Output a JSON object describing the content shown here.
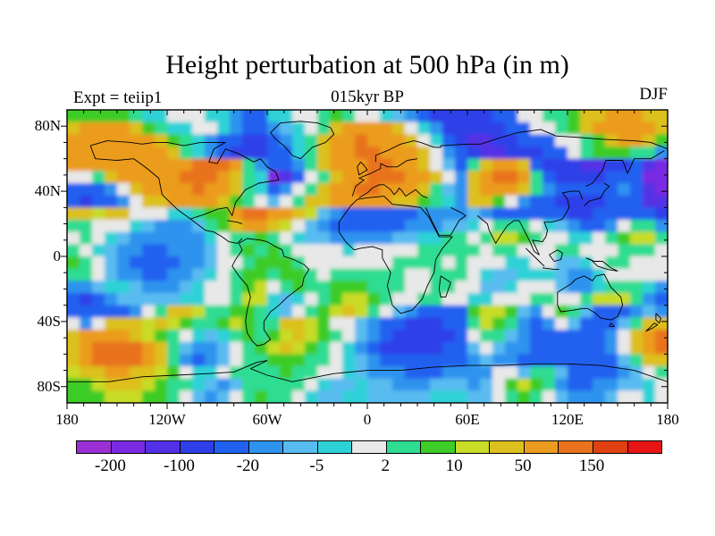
{
  "header": {
    "title": "Height perturbation at 500 hPa (in m)",
    "subtitle": "015kyr BP",
    "experiment": "Expt = teiip1",
    "season": "DJF"
  },
  "axes": {
    "lat_labels": [
      {
        "text": "80N",
        "lat": 80
      },
      {
        "text": "40N",
        "lat": 40
      },
      {
        "text": "0",
        "lat": 0
      },
      {
        "text": "40S",
        "lat": -40
      },
      {
        "text": "80S",
        "lat": -80
      }
    ],
    "lon_labels": [
      {
        "text": "180",
        "lon": -180
      },
      {
        "text": "120W",
        "lon": -120
      },
      {
        "text": "60W",
        "lon": -60
      },
      {
        "text": "0",
        "lon": 0
      },
      {
        "text": "60E",
        "lon": 60
      },
      {
        "text": "120E",
        "lon": 120
      },
      {
        "text": "180",
        "lon": 180
      }
    ]
  },
  "colorbar": {
    "labels": [
      {
        "text": "-200",
        "boundary": 1
      },
      {
        "text": "-100",
        "boundary": 3
      },
      {
        "text": "-20",
        "boundary": 5
      },
      {
        "text": "-5",
        "boundary": 7
      },
      {
        "text": "2",
        "boundary": 9
      },
      {
        "text": "10",
        "boundary": 11
      },
      {
        "text": "50",
        "boundary": 13
      },
      {
        "text": "150",
        "boundary": 15
      }
    ]
  },
  "chart_data": {
    "type": "filled_contour_map",
    "title": "Height perturbation at 500 hPa (in m)",
    "subtitle": "015kyr BP",
    "experiment": "Expt = teiip1",
    "season": "DJF",
    "units": "m",
    "projection": "equirectangular",
    "lon_range": [
      -180,
      180
    ],
    "lat_range": [
      -90,
      90
    ],
    "contour_levels": [
      -200,
      -150,
      -100,
      -50,
      -20,
      -10,
      -5,
      -2,
      2,
      5,
      10,
      20,
      50,
      100,
      150,
      200
    ],
    "labeled_levels": [
      -200,
      -100,
      -20,
      -5,
      2,
      10,
      50,
      150
    ],
    "palette": [
      "#9b2fd6",
      "#7a2be2",
      "#5230e6",
      "#2f3fe8",
      "#2061f0",
      "#2e93ee",
      "#58bcf0",
      "#2ed2d6",
      "#e8e8e8",
      "#2edc92",
      "#3ecc28",
      "#c8dc28",
      "#dcc01e",
      "#eb9c1e",
      "#e8731c",
      "#e04112",
      "#e61414"
    ],
    "grid": {
      "cols": 48,
      "rows": 24,
      "encoding": "each char is a palette index in base-17 (0-9,a-g); rows run 90N to 90S, cols 180W to 180E",
      "rows_data": [
        "aaaaa9778887754477889a988765433333448899accdddcc",
        "cddddca97788754456789cddddc8753333344889acdddddc",
        "dddddddca97544334579cddedddc87432233444889acddca",
        "ddddddddc97543334479cddeedddc8543223334489aaa995",
        "ddddddddddeeed954459cdddeeddc8649cddc43332233421",
        "889cdddddeeedc9712489cddeeeddc85cdeed94333344411",
        "44458cddddeddc974589cddeedddc965cdddc95444445421",
        "434458ccddddca98689ccdddddcca975cca8544333344422",
        "ccbcc888779aadeeddcb6544444455556544444433444443",
        "998887655569acddcb865444444555667899987654458995",
        "898765555557899a987665555566779989bba9887789abb9",
        "98765544555689a9a9888878888899999899888998889998",
        "a98654444556889aaa988888889999898887788667899888",
        "99865544556789aa9aa98999999889998766777655788888",
        "55677655567889ab89a99aaa999889988667888655799975",
        "43456666677889bb76789abba98899887788899889bbb954",
        "44444589ccb99aa97689abcb98654444abba658a96444565",
        "858cccbcba99aba99ccba886544333449ba95458644469cc",
        "cddddcba987679a9abcba986543333348996544444458cde",
        "cdeeeedc9655689abcba9875433333446865544444458cde",
        "cdeeeedc95456899aaa998765444444456554444444469cc",
        "bccddccba87789999a998876555444555588699644445689",
        "aabcccba997656999998766766555666568aba9544556678",
        "aaabbbaa9865689a99876677666667776689a98655568878"
      ]
    }
  }
}
